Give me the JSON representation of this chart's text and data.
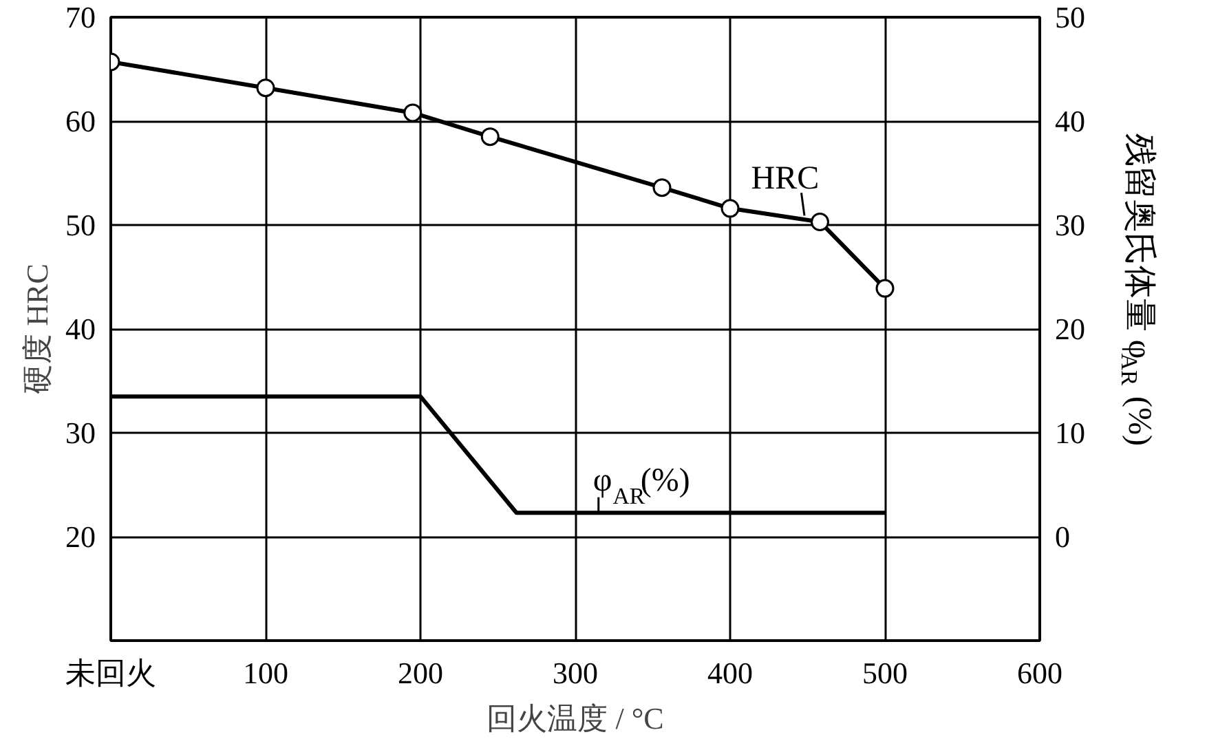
{
  "chart_data": {
    "type": "line",
    "xlabel": "回火温度 / °C",
    "ylabel": "硬度 HRC",
    "y2label": "残留奥氏体量 φ$_{AR}$(%)",
    "xlim": [
      0,
      600
    ],
    "xticks": [
      {
        "value": 0,
        "label": "未回火"
      },
      100,
      200,
      300,
      400,
      500,
      600
    ],
    "ylim": [
      10,
      70
    ],
    "yticks": [
      20,
      30,
      40,
      50,
      60,
      70
    ],
    "y2lim": [
      -10,
      50
    ],
    "y2ticks": [
      0,
      10,
      20,
      30,
      40,
      50
    ],
    "grid": true,
    "line_style": "solid",
    "series": [
      {
        "color": "#000000",
        "marker": "circle",
        "x": [
          0,
          100,
          195,
          245,
          356,
          400,
          458,
          500
        ],
        "values": [
          65.7,
          63.2,
          60.8,
          58.5,
          53.6,
          51.6,
          50.3,
          43.9
        ]
      },
      {
        "color": "#000000",
        "marker": "none",
        "axis": "y2",
        "x": [
          0,
          200,
          262,
          500
        ],
        "values": [
          13.5,
          13.5,
          2.3,
          2.3
        ]
      }
    ],
    "annotations": [
      {
        "text": "HRC",
        "x": 458,
        "y": 50.3
      },
      {
        "text": "φ$_{AR}$(%)",
        "x": 315,
        "y": 22.3
      }
    ]
  }
}
